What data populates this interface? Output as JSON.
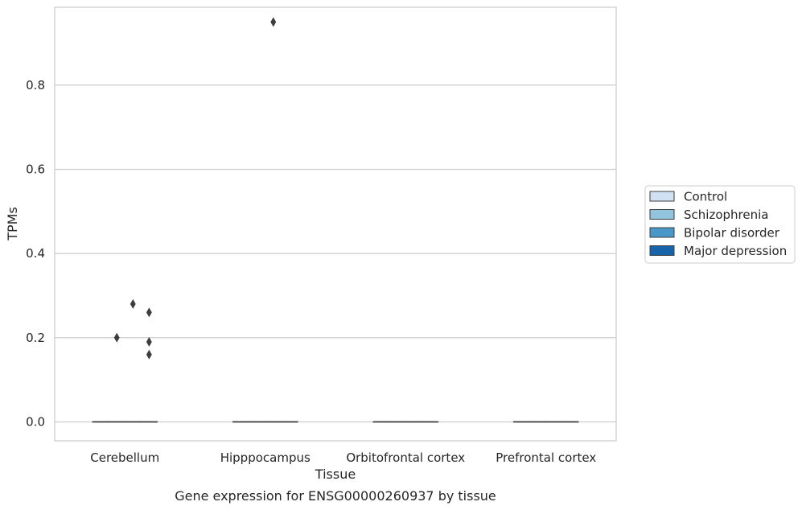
{
  "chart_data": {
    "type": "box",
    "title": "",
    "caption": "Gene expression for ENSG00000260937 by tissue",
    "xlabel": "Tissue",
    "ylabel": "TPMs",
    "ylim": [
      -0.045,
      0.985
    ],
    "yticks": [
      "0.0",
      "0.2",
      "0.4",
      "0.6",
      "0.8"
    ],
    "grid": true,
    "legend_position": "right",
    "categories": [
      "Cerebellum",
      "Hipppocampus",
      "Orbitofrontal cortex",
      "Prefrontal cortex"
    ],
    "series": [
      {
        "name": "Control",
        "color": "#cfe1f2"
      },
      {
        "name": "Schizophrenia",
        "color": "#93c4de"
      },
      {
        "name": "Bipolar disorder",
        "color": "#4a98c9"
      },
      {
        "name": "Major depression",
        "color": "#1764ab"
      }
    ],
    "boxes": [
      {
        "category": 0,
        "series": 0,
        "median": 0,
        "q1": 0,
        "q3": 0,
        "whisker_low": 0,
        "whisker_high": 0,
        "outliers": []
      },
      {
        "category": 0,
        "series": 1,
        "median": 0,
        "q1": 0,
        "q3": 0,
        "whisker_low": 0,
        "whisker_high": 0,
        "outliers": [
          0.2
        ]
      },
      {
        "category": 0,
        "series": 2,
        "median": 0,
        "q1": 0,
        "q3": 0,
        "whisker_low": 0,
        "whisker_high": 0,
        "outliers": [
          0.28
        ]
      },
      {
        "category": 0,
        "series": 3,
        "median": 0,
        "q1": 0,
        "q3": 0,
        "whisker_low": 0,
        "whisker_high": 0,
        "outliers": [
          0.26,
          0.19,
          0.16
        ]
      },
      {
        "category": 1,
        "series": 0,
        "median": 0,
        "q1": 0,
        "q3": 0,
        "whisker_low": 0,
        "whisker_high": 0,
        "outliers": []
      },
      {
        "category": 1,
        "series": 1,
        "median": 0,
        "q1": 0,
        "q3": 0,
        "whisker_low": 0,
        "whisker_high": 0,
        "outliers": []
      },
      {
        "category": 1,
        "series": 2,
        "median": 0,
        "q1": 0,
        "q3": 0,
        "whisker_low": 0,
        "whisker_high": 0,
        "outliers": [
          0.95
        ]
      },
      {
        "category": 1,
        "series": 3,
        "median": 0,
        "q1": 0,
        "q3": 0,
        "whisker_low": 0,
        "whisker_high": 0,
        "outliers": []
      },
      {
        "category": 2,
        "series": 0,
        "median": 0,
        "q1": 0,
        "q3": 0,
        "whisker_low": 0,
        "whisker_high": 0,
        "outliers": []
      },
      {
        "category": 2,
        "series": 1,
        "median": 0,
        "q1": 0,
        "q3": 0,
        "whisker_low": 0,
        "whisker_high": 0,
        "outliers": []
      },
      {
        "category": 2,
        "series": 2,
        "median": 0,
        "q1": 0,
        "q3": 0,
        "whisker_low": 0,
        "whisker_high": 0,
        "outliers": []
      },
      {
        "category": 2,
        "series": 3,
        "median": 0,
        "q1": 0,
        "q3": 0,
        "whisker_low": 0,
        "whisker_high": 0,
        "outliers": []
      },
      {
        "category": 3,
        "series": 0,
        "median": 0,
        "q1": 0,
        "q3": 0,
        "whisker_low": 0,
        "whisker_high": 0,
        "outliers": []
      },
      {
        "category": 3,
        "series": 1,
        "median": 0,
        "q1": 0,
        "q3": 0,
        "whisker_low": 0,
        "whisker_high": 0,
        "outliers": []
      },
      {
        "category": 3,
        "series": 2,
        "median": 0,
        "q1": 0,
        "q3": 0,
        "whisker_low": 0,
        "whisker_high": 0,
        "outliers": []
      },
      {
        "category": 3,
        "series": 3,
        "median": 0,
        "q1": 0,
        "q3": 0,
        "whisker_low": 0,
        "whisker_high": 0,
        "outliers": []
      }
    ]
  }
}
